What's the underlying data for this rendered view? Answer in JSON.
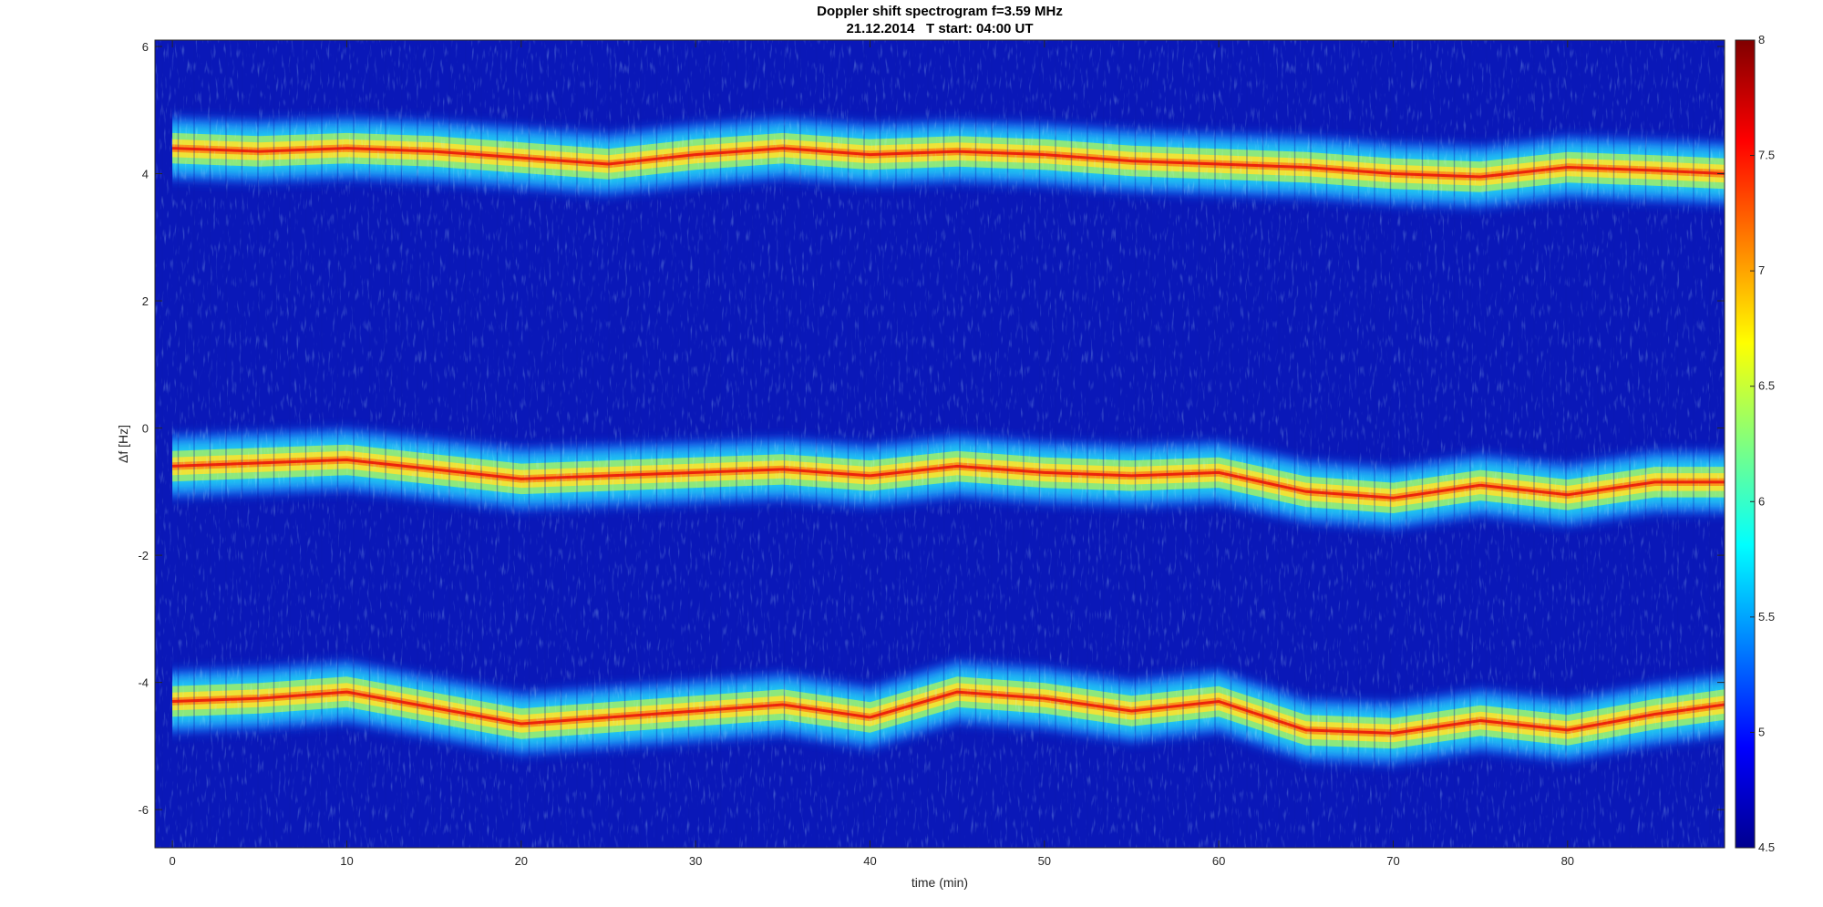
{
  "chart_data": {
    "type": "heatmap",
    "title": "Doppler shift spectrogram f=3.59 MHz",
    "subtitle": "21.12.2014   T start: 04:00 UT",
    "xlabel": "time (min)",
    "ylabel": "Δf [Hz]",
    "xlim": [
      -1,
      89
    ],
    "ylim": [
      -6.6,
      6.1
    ],
    "x_ticks": [
      0,
      10,
      20,
      30,
      40,
      50,
      60,
      70,
      80
    ],
    "y_ticks": [
      6,
      4,
      2,
      0,
      -2,
      -4,
      -6
    ],
    "colorbar": {
      "range": [
        4.5,
        8
      ],
      "ticks": [
        8,
        7.5,
        7,
        6.5,
        6,
        5.5,
        5,
        4.5
      ],
      "colormap": "jet"
    },
    "series": [
      {
        "x": [
          0,
          5,
          10,
          15,
          20,
          25,
          30,
          35,
          40,
          45,
          50,
          55,
          60,
          65,
          70,
          75,
          80,
          85,
          89
        ],
        "y": [
          4.4,
          4.35,
          4.4,
          4.35,
          4.25,
          4.15,
          4.3,
          4.4,
          4.3,
          4.35,
          4.3,
          4.2,
          4.15,
          4.1,
          4.0,
          3.95,
          4.1,
          4.05,
          4.0
        ]
      },
      {
        "x": [
          0,
          5,
          10,
          15,
          20,
          25,
          30,
          35,
          40,
          45,
          50,
          55,
          60,
          65,
          70,
          75,
          80,
          85,
          89
        ],
        "y": [
          -0.6,
          -0.55,
          -0.5,
          -0.65,
          -0.8,
          -0.75,
          -0.7,
          -0.65,
          -0.75,
          -0.6,
          -0.7,
          -0.75,
          -0.7,
          -1.0,
          -1.1,
          -0.9,
          -1.05,
          -0.85,
          -0.85
        ]
      },
      {
        "x": [
          0,
          5,
          10,
          15,
          20,
          25,
          30,
          35,
          40,
          45,
          50,
          55,
          60,
          65,
          70,
          75,
          80,
          85,
          89
        ],
        "y": [
          -4.3,
          -4.25,
          -4.15,
          -4.4,
          -4.65,
          -4.55,
          -4.45,
          -4.35,
          -4.55,
          -4.15,
          -4.25,
          -4.45,
          -4.3,
          -4.75,
          -4.8,
          -4.6,
          -4.75,
          -4.5,
          -4.35
        ]
      }
    ]
  }
}
